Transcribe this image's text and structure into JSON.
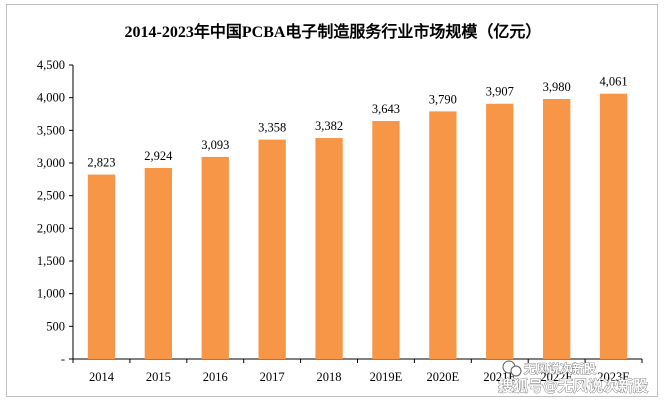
{
  "colors": {
    "bar": "#F79646",
    "axis": "#000000",
    "frame": "#bfbfbf"
  },
  "watermark": {
    "top": "无风说次新股",
    "bottom": "搜狐号@无风说次新股"
  },
  "chart_data": {
    "type": "bar",
    "title": "2014-2023年中国PCBA电子制造服务行业市场规模（亿元）",
    "xlabel": "",
    "ylabel": "",
    "categories": [
      "2014",
      "2015",
      "2016",
      "2017",
      "2018",
      "2019E",
      "2020E",
      "2021E",
      "2022E",
      "2023E"
    ],
    "values": [
      2823,
      2924,
      3093,
      3358,
      3382,
      3643,
      3790,
      3907,
      3980,
      4061
    ],
    "value_labels": [
      "2,823",
      "2,924",
      "3,093",
      "3,358",
      "3,382",
      "3,643",
      "3,790",
      "3,907",
      "3,980",
      "4,061"
    ],
    "ylim": [
      0,
      4500
    ],
    "yticks": [
      0,
      500,
      1000,
      1500,
      2000,
      2500,
      3000,
      3500,
      4000,
      4500
    ],
    "ytick_labels": [
      "-",
      "500",
      "1,000",
      "1,500",
      "2,000",
      "2,500",
      "3,000",
      "3,500",
      "4,000",
      "4,500"
    ],
    "grid": false,
    "legend": "none"
  }
}
